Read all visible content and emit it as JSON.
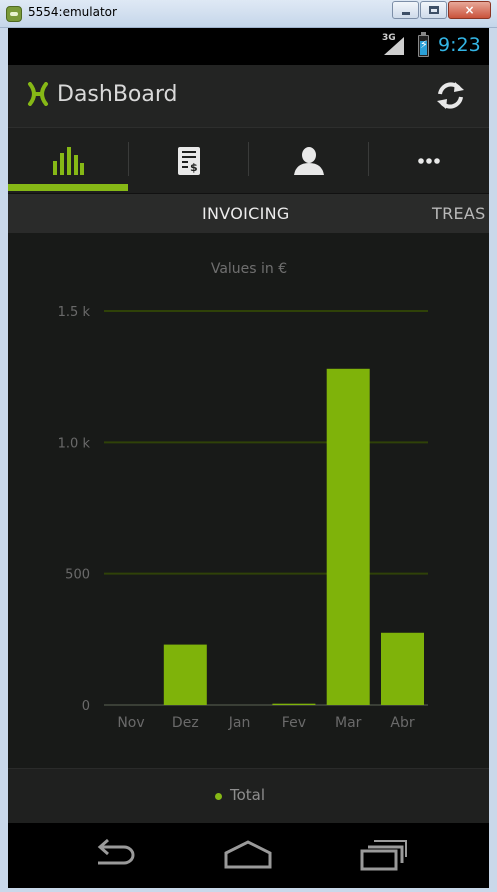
{
  "window": {
    "title": "5554:emulator",
    "close_glyph": "×"
  },
  "statusbar": {
    "network": "3G",
    "time": "9:23",
    "battery_level_pct": 70
  },
  "actionbar": {
    "app_title": "DashBoard",
    "logo_icon": "x-logo-icon",
    "refresh_icon": "refresh-icon"
  },
  "icon_tabs": [
    {
      "icon": "bar-chart-icon",
      "selected": true
    },
    {
      "icon": "invoice-icon",
      "selected": false
    },
    {
      "icon": "person-icon",
      "selected": false
    },
    {
      "icon": "more-icon",
      "selected": false
    }
  ],
  "pager": {
    "active": "INVOICING",
    "next": "TREAS"
  },
  "colors": {
    "accent": "#86b816",
    "bar": "#7fb30a",
    "grid": "#2f4208",
    "background": "#181a18"
  },
  "chart_data": {
    "type": "bar",
    "title": "Values in €",
    "categories": [
      "Nov",
      "Dez",
      "Jan",
      "Fev",
      "Mar",
      "Abr"
    ],
    "series": [
      {
        "name": "Total",
        "values": [
          0,
          230,
          0,
          5,
          1280,
          275
        ]
      }
    ],
    "yticks": [
      {
        "value": 0,
        "label": "0"
      },
      {
        "value": 500,
        "label": "500"
      },
      {
        "value": 1000,
        "label": "1.0 k"
      },
      {
        "value": 1500,
        "label": "1.5 k"
      }
    ],
    "ylim": [
      0,
      1500
    ],
    "grid": true,
    "legend": "bottom-center"
  },
  "navbar": {
    "back_icon": "back-icon",
    "home_icon": "home-icon",
    "recents_icon": "recents-icon"
  }
}
